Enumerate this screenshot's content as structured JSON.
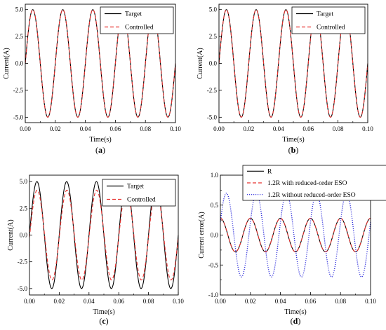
{
  "chart_data": [
    {
      "id": "a",
      "caption": "(a)",
      "type": "line",
      "xlabel": "Time(s)",
      "ylabel": "Current(A)",
      "xlim": [
        0,
        0.1
      ],
      "ylim": [
        -5.5,
        5.5
      ],
      "xticks": [
        "0.00",
        "0.02",
        "0.04",
        "0.06",
        "0.08",
        "0.10"
      ],
      "yticks": [
        "5.0",
        "2.5",
        "0.0",
        "-2.5",
        "-5.0"
      ],
      "legend_position": "top-right",
      "series": [
        {
          "name": "Target",
          "color": "#000000",
          "dash": "solid",
          "amplitude": 5.0,
          "frequency_hz": 50,
          "phase_deg": 0
        },
        {
          "name": "Controlled",
          "color": "#e8302e",
          "dash": "dashed",
          "amplitude": 5.0,
          "frequency_hz": 50,
          "phase_deg": 0
        }
      ]
    },
    {
      "id": "b",
      "caption": "(b)",
      "type": "line",
      "xlabel": "Time(s)",
      "ylabel": "Current(A)",
      "xlim": [
        0,
        0.1
      ],
      "ylim": [
        -5.5,
        5.5
      ],
      "xticks": [
        "0.00",
        "0.02",
        "0.04",
        "0.06",
        "0.08",
        "0.10"
      ],
      "yticks": [
        "5.0",
        "2.5",
        "0.0",
        "-2.5",
        "-5.0"
      ],
      "legend_position": "top-right",
      "series": [
        {
          "name": "Target",
          "color": "#000000",
          "dash": "solid",
          "amplitude": 5.0,
          "frequency_hz": 50,
          "phase_deg": 0
        },
        {
          "name": "Controlled",
          "color": "#e8302e",
          "dash": "dashed",
          "amplitude": 5.0,
          "frequency_hz": 50,
          "phase_deg": 0
        }
      ]
    },
    {
      "id": "c",
      "caption": "(c)",
      "type": "line",
      "xlabel": "Time(s)",
      "ylabel": "Current(A)",
      "xlim": [
        0,
        0.1
      ],
      "ylim": [
        -5.6,
        5.6
      ],
      "xticks": [
        "0.00",
        "0.02",
        "0.04",
        "0.06",
        "0.08",
        "0.10"
      ],
      "yticks": [
        "5.0",
        "2.5",
        "0.0",
        "-2.5",
        "-5.0"
      ],
      "legend_position": "top-right",
      "series": [
        {
          "name": "Target",
          "color": "#000000",
          "dash": "solid",
          "amplitude": 5.0,
          "frequency_hz": 50,
          "phase_deg": 0
        },
        {
          "name": "Controlled",
          "color": "#e8302e",
          "dash": "dashed",
          "amplitude": 4.2,
          "frequency_hz": 50,
          "phase_deg": -3
        }
      ]
    },
    {
      "id": "d",
      "caption": "(d)",
      "type": "line",
      "xlabel": "Time(s)",
      "ylabel": "Current error(A)",
      "xlim": [
        0,
        0.1
      ],
      "ylim": [
        -1.0,
        1.0
      ],
      "xticks": [
        "0.00",
        "0.02",
        "0.04",
        "0.06",
        "0.08",
        "0.10"
      ],
      "yticks": [
        "1.0",
        "0.5",
        "0.0",
        "-0.5",
        "-1.0"
      ],
      "minor_yticks": [
        0.75,
        0.25,
        -0.25,
        -0.75
      ],
      "legend_position": "top",
      "series": [
        {
          "name": "R",
          "color": "#000000",
          "dash": "solid",
          "amplitude": 0.28,
          "frequency_hz": 50,
          "phase_deg": 90
        },
        {
          "name": "1.2R with reduced-order ESO",
          "color": "#e8302e",
          "dash": "dashed",
          "amplitude": 0.28,
          "frequency_hz": 50,
          "phase_deg": 90
        },
        {
          "name": "1.2R without reduced-order ESO",
          "color": "#2a2adb",
          "dash": "dotted",
          "amplitude": 0.7,
          "frequency_hz": 50,
          "phase_deg": 18
        }
      ]
    }
  ]
}
